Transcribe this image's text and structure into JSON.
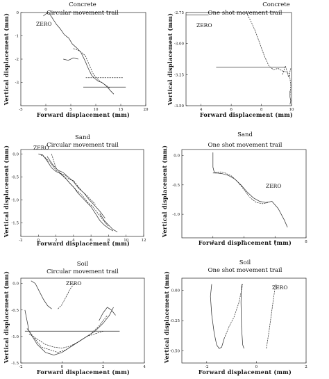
{
  "chart_data": [
    {
      "type": "line",
      "title": "Concrete",
      "subtitle": "Circular movement trail",
      "xlabel": "Forward displacement (mm)",
      "ylabel": "Vertical displacement (mm)",
      "xlim": [
        -5,
        20
      ],
      "ylim": [
        -4,
        0
      ],
      "x_ticks": [
        "-5",
        "0",
        "5",
        "10",
        "15",
        "20"
      ],
      "y_ticks": [
        "0",
        "-1",
        "-2",
        "-3"
      ],
      "annotation": "ZERO",
      "series": [
        {
          "x": [
            -0.5,
            0.1,
            0.6,
            1.2,
            2.1,
            2.9,
            3.7,
            4.6,
            5.3,
            6.1,
            7.0,
            7.8,
            8.5,
            9.2,
            9.9,
            10.5,
            11.2,
            11.8,
            12.3,
            12.9,
            13.6
          ],
          "y": [
            -0.15,
            -0.05,
            0.0,
            -0.2,
            -0.5,
            -0.7,
            -0.95,
            -1.1,
            -1.35,
            -1.5,
            -1.7,
            -2.05,
            -2.4,
            -2.7,
            -2.85,
            -2.95,
            -3.0,
            -3.1,
            -3.2,
            -3.35,
            -3.5
          ]
        },
        {
          "x": [
            5.5,
            6.3,
            7.1,
            7.9,
            8.6,
            9.4,
            10.1,
            10.8,
            11.5,
            12.2,
            12.8
          ],
          "y": [
            -1.55,
            -1.6,
            -1.7,
            -1.85,
            -2.2,
            -2.6,
            -2.8,
            -2.95,
            -3.05,
            -3.15,
            -3.25
          ]
        },
        {
          "x": [
            3.5,
            4.5,
            5.5,
            6.5
          ],
          "y": [
            -2.0,
            -2.05,
            -1.95,
            -2.0
          ]
        },
        {
          "x": [
            8.0,
            10.5,
            13.0,
            15.5
          ],
          "y": [
            -2.8,
            -2.8,
            -2.8,
            -2.8
          ]
        },
        {
          "x": [
            7.5,
            10.0,
            12.5,
            15.0,
            16.0
          ],
          "y": [
            -3.2,
            -3.2,
            -3.2,
            -3.2,
            -3.2
          ]
        }
      ]
    },
    {
      "type": "line",
      "title": "Concrete",
      "subtitle": "One shot movement trail",
      "xlabel": "Forward displacement (mm)",
      "ylabel": "Vertical displacement (mm)",
      "xlim": [
        3,
        10
      ],
      "ylim": [
        -3.5,
        -2.75
      ],
      "x_ticks": [
        "4",
        "6",
        "8",
        "10"
      ],
      "y_ticks": [
        "-2.75",
        "-3.00",
        "-3.25",
        "-3.50"
      ],
      "annotation": "ZERO",
      "series": [
        {
          "x": [
            2.9,
            3.5,
            4.2,
            4.5
          ],
          "y": [
            -2.77,
            -2.77,
            -2.77,
            -2.77
          ]
        },
        {
          "x": [
            7.0,
            7.3,
            7.6,
            7.9,
            8.2,
            8.5,
            8.8,
            9.1,
            9.4,
            9.7,
            9.85,
            9.9,
            9.95,
            9.9
          ],
          "y": [
            -2.75,
            -2.82,
            -2.9,
            -3.0,
            -3.1,
            -3.18,
            -3.21,
            -3.2,
            -3.22,
            -3.23,
            -3.24,
            -3.28,
            -3.34,
            -3.42
          ]
        },
        {
          "x": [
            5.0,
            6.5,
            8.0,
            9.0,
            9.6
          ],
          "y": [
            -3.19,
            -3.19,
            -3.19,
            -3.19,
            -3.19
          ]
        },
        {
          "x": [
            9.4,
            9.6,
            9.8,
            9.95
          ],
          "y": [
            -3.25,
            -3.18,
            -3.27,
            -3.2
          ]
        },
        {
          "x": [
            9.9,
            9.9,
            9.95,
            9.9
          ],
          "y": [
            -3.38,
            -3.43,
            -3.46,
            -3.49
          ]
        }
      ]
    },
    {
      "type": "line",
      "title": "Sand",
      "subtitle": "Circular movement trail",
      "xlabel": "Forward displacement (mm)",
      "ylabel": "Vertical displacement (mm)",
      "xlim": [
        -2,
        12
      ],
      "ylim": [
        -1.8,
        0.1
      ],
      "x_ticks": [
        "-2",
        "0",
        "2",
        "4",
        "6",
        "8",
        "10",
        "12"
      ],
      "y_ticks": [
        "0.0",
        "-0.5",
        "-1.0",
        "-1.5"
      ],
      "annotation": "ZERO",
      "series": [
        {
          "x": [
            0.0,
            0.5,
            1.0,
            1.5,
            2.0,
            2.5,
            3.0,
            3.5,
            4.0,
            4.5,
            5.0,
            5.5,
            6.0,
            6.5,
            7.0,
            7.5,
            8.0,
            8.5
          ],
          "y": [
            0.0,
            -0.02,
            -0.15,
            -0.3,
            -0.38,
            -0.42,
            -0.5,
            -0.62,
            -0.72,
            -0.85,
            -0.95,
            -1.05,
            -1.15,
            -1.3,
            -1.45,
            -1.55,
            -1.62,
            -1.68
          ]
        },
        {
          "x": [
            0.3,
            0.8,
            1.4,
            2.0,
            2.6,
            3.2,
            3.8,
            4.4,
            5.0,
            5.6,
            6.2,
            6.8,
            7.4,
            8.0
          ],
          "y": [
            -0.02,
            -0.08,
            -0.2,
            -0.35,
            -0.45,
            -0.55,
            -0.68,
            -0.8,
            -0.9,
            -1.05,
            -1.15,
            -1.3,
            -1.45,
            -1.58
          ]
        },
        {
          "x": [
            1.0,
            1.6,
            2.2,
            2.8,
            3.4,
            4.0,
            4.6,
            5.2,
            5.8,
            6.4,
            7.0,
            7.6
          ],
          "y": [
            -0.05,
            -0.22,
            -0.35,
            -0.4,
            -0.5,
            -0.6,
            -0.75,
            -0.85,
            -1.0,
            -1.12,
            -1.25,
            -1.4
          ]
        },
        {
          "x": [
            1.5,
            2.0,
            2.5,
            3.0,
            3.5,
            4.0,
            4.5,
            5.0,
            5.5,
            6.0,
            6.5
          ],
          "y": [
            0.0,
            -0.3,
            -0.42,
            -0.45,
            -0.55,
            -0.58,
            -0.7,
            -0.82,
            -0.9,
            -1.0,
            -1.1
          ]
        },
        {
          "x": [
            7.0,
            7.5,
            8.0,
            8.5,
            9.0
          ],
          "y": [
            -1.3,
            -1.45,
            -1.55,
            -1.65,
            -1.7
          ]
        }
      ]
    },
    {
      "type": "line",
      "title": "Sand",
      "subtitle": "One shot movement trail",
      "xlabel": "Forward displacement (mm)",
      "ylabel": "Vertical displacement (mm)",
      "xlim": [
        0,
        8
      ],
      "ylim": [
        -1.4,
        0.1
      ],
      "x_ticks": [
        "2",
        "4",
        "6",
        "8"
      ],
      "y_ticks": [
        "0.0",
        "-0.5",
        "-1.0"
      ],
      "annotation": "ZERO",
      "series": [
        {
          "x": [
            2.0,
            2.0,
            2.1,
            2.3,
            2.6,
            3.0,
            3.4,
            3.8,
            4.2,
            4.6,
            5.0,
            5.4,
            5.8,
            6.2,
            6.6,
            6.8
          ],
          "y": [
            0.05,
            -0.2,
            -0.3,
            -0.3,
            -0.31,
            -0.34,
            -0.4,
            -0.5,
            -0.62,
            -0.72,
            -0.78,
            -0.8,
            -0.78,
            -0.9,
            -1.1,
            -1.22
          ]
        },
        {
          "x": [
            2.0,
            2.2,
            2.5,
            2.8,
            3.2,
            3.6,
            4.0,
            4.4,
            4.8,
            5.2,
            5.6
          ],
          "y": [
            -0.3,
            -0.29,
            -0.28,
            -0.3,
            -0.35,
            -0.45,
            -0.58,
            -0.72,
            -0.8,
            -0.82,
            -0.8
          ]
        }
      ]
    },
    {
      "type": "line",
      "title": "Soil",
      "subtitle": "Circular movement trail",
      "xlabel": "Forward displacement (mm)",
      "ylabel": "Vertical displacement (mm)",
      "xlim": [
        -2,
        4
      ],
      "ylim": [
        -1.5,
        0.1
      ],
      "x_ticks": [
        "-2",
        "0",
        "2",
        "4"
      ],
      "y_ticks": [
        "0.0",
        "-0.5",
        "-1.0",
        "-1.5"
      ],
      "annotation": "ZERO",
      "series": [
        {
          "x": [
            -1.5,
            -1.3,
            -1.1,
            -0.9,
            -0.7,
            -0.5
          ],
          "y": [
            0.05,
            0.0,
            -0.15,
            -0.3,
            -0.42,
            -0.48
          ]
        },
        {
          "x": [
            -0.2,
            0.0,
            0.2,
            0.4,
            0.6
          ],
          "y": [
            -0.48,
            -0.4,
            -0.25,
            -0.1,
            0.0
          ]
        },
        {
          "x": [
            -1.8,
            -1.6,
            -1.2,
            -0.8,
            -0.4,
            0.0,
            0.4,
            0.8,
            1.2,
            1.6,
            2.0,
            2.3,
            2.5
          ],
          "y": [
            -0.5,
            -0.9,
            -1.15,
            -1.3,
            -1.35,
            -1.3,
            -1.2,
            -1.1,
            -1.0,
            -0.9,
            -0.75,
            -0.6,
            -0.45
          ]
        },
        {
          "x": [
            -1.7,
            -1.4,
            -1.0,
            -0.6,
            -0.2,
            0.2,
            0.6,
            1.0,
            1.4,
            1.8,
            2.2
          ],
          "y": [
            -0.85,
            -1.0,
            -1.2,
            -1.25,
            -1.3,
            -1.25,
            -1.15,
            -1.05,
            -0.95,
            -0.8,
            -0.6
          ]
        },
        {
          "x": [
            -1.8,
            -1.2,
            -0.6,
            0.0,
            0.6,
            1.2,
            1.8,
            2.4,
            2.8
          ],
          "y": [
            -0.9,
            -0.9,
            -0.9,
            -0.9,
            -0.9,
            -0.9,
            -0.9,
            -0.9,
            -0.9
          ]
        },
        {
          "x": [
            -1.6,
            -1.2,
            -0.8,
            -0.4,
            0.0,
            0.4,
            0.8,
            1.2,
            1.6,
            2.0
          ],
          "y": [
            -0.95,
            -1.05,
            -1.15,
            -1.2,
            -1.22,
            -1.18,
            -1.1,
            -1.0,
            -0.95,
            -0.9
          ]
        },
        {
          "x": [
            1.8,
            2.0,
            2.2,
            2.4,
            2.6
          ],
          "y": [
            -0.7,
            -0.55,
            -0.45,
            -0.5,
            -0.6
          ]
        }
      ]
    },
    {
      "type": "line",
      "title": "Soil",
      "subtitle": "One shot movement trail",
      "xlabel": "Forward displacement (mm)",
      "ylabel": "Vertical displacement (mm)",
      "xlim": [
        -3,
        2
      ],
      "ylim": [
        -0.6,
        0.1
      ],
      "x_ticks": [
        "-2",
        "0",
        "2"
      ],
      "y_ticks": [
        "0.00",
        "-0.25",
        "-0.50"
      ],
      "annotation": "ZERO",
      "series": [
        {
          "x": [
            -1.8,
            -1.85,
            -1.8,
            -1.7,
            -1.6,
            -1.5,
            -1.4,
            -1.3
          ],
          "y": [
            0.05,
            -0.05,
            -0.2,
            -0.35,
            -0.45,
            -0.48,
            -0.47,
            -0.4
          ]
        },
        {
          "x": [
            -1.3,
            -1.1,
            -0.9,
            -0.7,
            -0.55
          ],
          "y": [
            -0.4,
            -0.3,
            -0.22,
            -0.1,
            0.05
          ]
        },
        {
          "x": [
            -0.6,
            -0.62,
            -0.6,
            -0.55,
            -0.5
          ],
          "y": [
            0.05,
            -0.1,
            -0.3,
            -0.45,
            -0.48
          ]
        },
        {
          "x": [
            0.4,
            0.5,
            0.6,
            0.7,
            0.75,
            0.8
          ],
          "y": [
            -0.48,
            -0.35,
            -0.2,
            -0.05,
            0.02,
            0.05
          ]
        }
      ]
    }
  ]
}
